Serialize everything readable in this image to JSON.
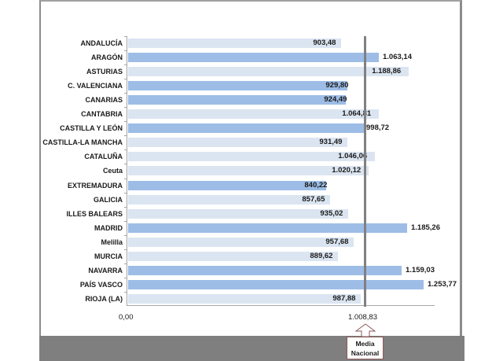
{
  "chart_data": {
    "type": "bar",
    "orientation": "horizontal",
    "title": "",
    "xlabel": "",
    "ylabel": "",
    "xlim": [
      0,
      1300
    ],
    "grid": false,
    "legend": null,
    "x_tick_labels": [
      "0,00",
      "1.008,83"
    ],
    "reference_line": {
      "value": 1008.83,
      "label": "1.008,83",
      "annotation": "Media Nacional"
    },
    "categories": [
      "ANDALUCÍA",
      "ARAGÓN",
      "ASTURIAS",
      "C. VALENCIANA",
      "CANARIAS",
      "CANTABRIA",
      "CASTILLA Y LEÓN",
      "CASTILLA-LA MANCHA",
      "CATALUÑA",
      "Ceuta",
      "EXTREMADURA",
      "GALICIA",
      "ILLES BALEARS",
      "MADRID",
      "Melilla",
      "MURCIA",
      "NAVARRA",
      "PAÍS VASCO",
      "RIOJA (LA)"
    ],
    "values": [
      903.48,
      1063.14,
      1188.86,
      929.8,
      924.49,
      1064.81,
      998.72,
      931.49,
      1046.06,
      1020.12,
      840.22,
      857.65,
      935.02,
      1185.26,
      957.68,
      889.62,
      1159.03,
      1253.77,
      987.88
    ],
    "value_labels": [
      "903,48",
      "1.063,14",
      "1.188,86",
      "929,80",
      "924,49",
      "1.064,81",
      "998,72",
      "931,49",
      "1.046,06",
      "1.020,12",
      "840,22",
      "857,65",
      "935,02",
      "1.185,26",
      "957,68",
      "889,62",
      "1.159,03",
      "1.253,77",
      "987,88"
    ],
    "bar_styles": [
      "light",
      "dark",
      "light",
      "dark",
      "dark",
      "light",
      "dark",
      "light",
      "light",
      "light",
      "dark",
      "light",
      "light",
      "dark",
      "light",
      "light",
      "dark",
      "dark",
      "light"
    ],
    "colors": {
      "dark_bar": "#9dbde6",
      "light_bar": "#dbe5f1",
      "reference_line": "#808080",
      "footer_band": "#7f7f7f"
    }
  },
  "labels": {
    "x_min": "0,00",
    "x_ref": "1.008,83",
    "callout_line1": "Media",
    "callout_line2": "Nacional"
  }
}
